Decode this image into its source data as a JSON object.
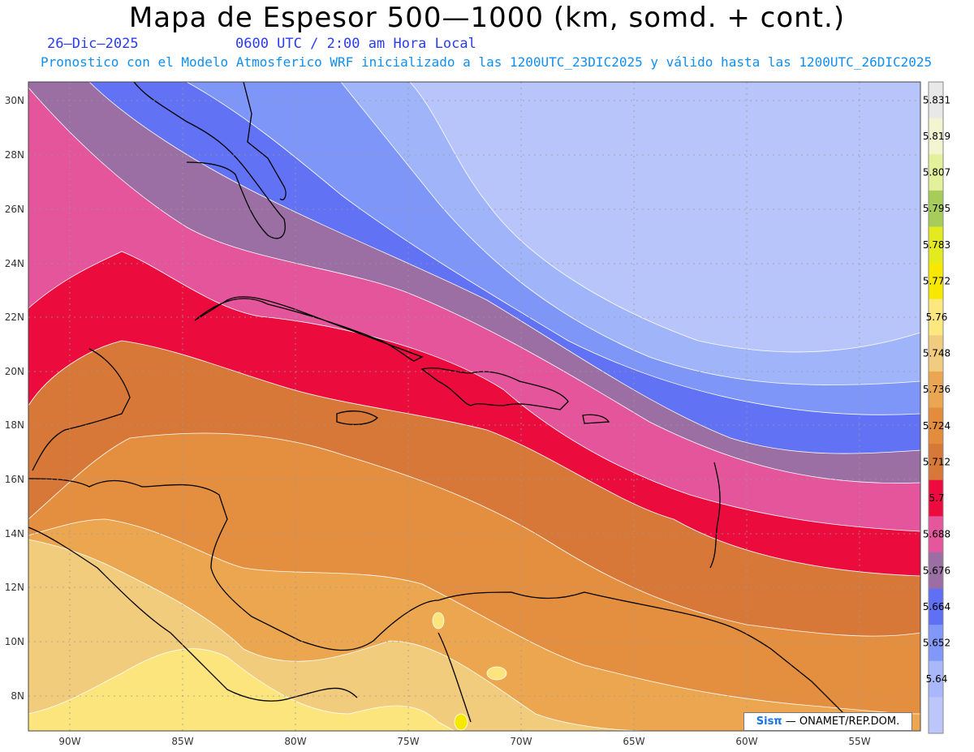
{
  "header": {
    "title": "Mapa de Espesor 500—1000 (km, somd. + cont.)",
    "date": "26—Dic—2025",
    "time": "0600 UTC / 2:00 am Hora Local",
    "description": "Pronostico con el Modelo Atmosferico WRF inicializado a las 1200UTC_23DIC2025 y válido hasta las  1200UTC_26DIC2025"
  },
  "map": {
    "lon_labels": [
      "90W",
      "85W",
      "80W",
      "75W",
      "70W",
      "65W",
      "60W",
      "55W"
    ],
    "lat_labels": [
      "30N",
      "28N",
      "26N",
      "24N",
      "22N",
      "20N",
      "18N",
      "16N",
      "14N",
      "12N",
      "10N",
      "8N"
    ]
  },
  "legend": {
    "levels": [
      "5.831",
      "5.819",
      "5.807",
      "5.795",
      "5.783",
      "5.772",
      "5.76",
      "5.748",
      "5.736",
      "5.724",
      "5.712",
      "5.7",
      "5.688",
      "5.676",
      "5.664",
      "5.652",
      "5.64"
    ],
    "colors": [
      "#e8e8e8",
      "#f2f5d0",
      "#e3f19a",
      "#a8cc5a",
      "#e3ea1e",
      "#f7e800",
      "#fce87e",
      "#f2cc7e",
      "#eaa650",
      "#e28c3c",
      "#d87838",
      "#ec0a3e",
      "#e5569c",
      "#9b6fa3",
      "#6070f5",
      "#8198f8",
      "#a8b8fa",
      "#bcc6fb"
    ]
  },
  "footer": {
    "brand": "Sisπ",
    "org": " — ONAMET/REP.DOM."
  }
}
